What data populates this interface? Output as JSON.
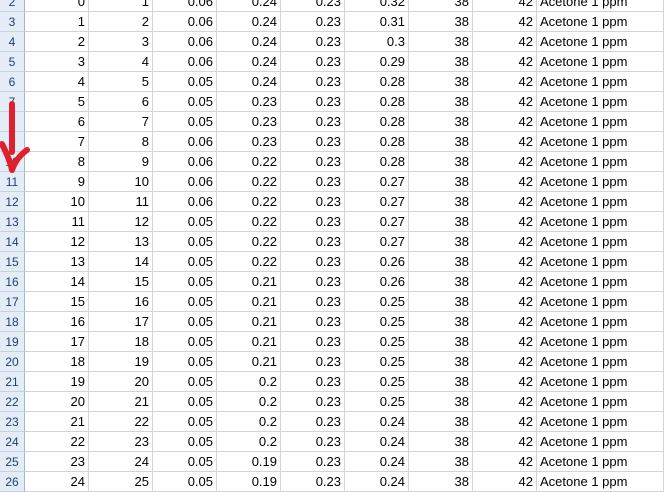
{
  "sheet": {
    "rows": [
      {
        "hdr": "2",
        "c": [
          "0",
          "1",
          "0.06",
          "0.24",
          "0.23",
          "0.32",
          "38",
          "42",
          "Acetone 1 ppm"
        ]
      },
      {
        "hdr": "3",
        "c": [
          "1",
          "2",
          "0.06",
          "0.24",
          "0.23",
          "0.31",
          "38",
          "42",
          "Acetone 1 ppm"
        ]
      },
      {
        "hdr": "4",
        "c": [
          "2",
          "3",
          "0.06",
          "0.24",
          "0.23",
          "0.3",
          "38",
          "42",
          "Acetone 1 ppm"
        ]
      },
      {
        "hdr": "5",
        "c": [
          "3",
          "4",
          "0.06",
          "0.24",
          "0.23",
          "0.29",
          "38",
          "42",
          "Acetone 1 ppm"
        ]
      },
      {
        "hdr": "6",
        "c": [
          "4",
          "5",
          "0.05",
          "0.24",
          "0.23",
          "0.28",
          "38",
          "42",
          "Acetone 1 ppm"
        ]
      },
      {
        "hdr": "7",
        "c": [
          "5",
          "6",
          "0.05",
          "0.23",
          "0.23",
          "0.28",
          "38",
          "42",
          "Acetone 1 ppm"
        ]
      },
      {
        "hdr": "8",
        "c": [
          "6",
          "7",
          "0.05",
          "0.23",
          "0.23",
          "0.28",
          "38",
          "42",
          "Acetone 1 ppm"
        ]
      },
      {
        "hdr": "9",
        "c": [
          "7",
          "8",
          "0.06",
          "0.23",
          "0.23",
          "0.28",
          "38",
          "42",
          "Acetone 1 ppm"
        ]
      },
      {
        "hdr": "10",
        "c": [
          "8",
          "9",
          "0.06",
          "0.22",
          "0.23",
          "0.28",
          "38",
          "42",
          "Acetone 1 ppm"
        ]
      },
      {
        "hdr": "11",
        "c": [
          "9",
          "10",
          "0.06",
          "0.22",
          "0.23",
          "0.27",
          "38",
          "42",
          "Acetone 1 ppm"
        ]
      },
      {
        "hdr": "12",
        "c": [
          "10",
          "11",
          "0.06",
          "0.22",
          "0.23",
          "0.27",
          "38",
          "42",
          "Acetone 1 ppm"
        ]
      },
      {
        "hdr": "13",
        "c": [
          "11",
          "12",
          "0.05",
          "0.22",
          "0.23",
          "0.27",
          "38",
          "42",
          "Acetone 1 ppm"
        ]
      },
      {
        "hdr": "14",
        "c": [
          "12",
          "13",
          "0.05",
          "0.22",
          "0.23",
          "0.27",
          "38",
          "42",
          "Acetone 1 ppm"
        ]
      },
      {
        "hdr": "15",
        "c": [
          "13",
          "14",
          "0.05",
          "0.22",
          "0.23",
          "0.26",
          "38",
          "42",
          "Acetone 1 ppm"
        ]
      },
      {
        "hdr": "16",
        "c": [
          "14",
          "15",
          "0.05",
          "0.21",
          "0.23",
          "0.26",
          "38",
          "42",
          "Acetone 1 ppm"
        ]
      },
      {
        "hdr": "17",
        "c": [
          "15",
          "16",
          "0.05",
          "0.21",
          "0.23",
          "0.25",
          "38",
          "42",
          "Acetone 1 ppm"
        ]
      },
      {
        "hdr": "18",
        "c": [
          "16",
          "17",
          "0.05",
          "0.21",
          "0.23",
          "0.25",
          "38",
          "42",
          "Acetone 1 ppm"
        ]
      },
      {
        "hdr": "19",
        "c": [
          "17",
          "18",
          "0.05",
          "0.21",
          "0.23",
          "0.25",
          "38",
          "42",
          "Acetone 1 ppm"
        ]
      },
      {
        "hdr": "20",
        "c": [
          "18",
          "19",
          "0.05",
          "0.21",
          "0.23",
          "0.25",
          "38",
          "42",
          "Acetone 1 ppm"
        ]
      },
      {
        "hdr": "21",
        "c": [
          "19",
          "20",
          "0.05",
          "0.2",
          "0.23",
          "0.25",
          "38",
          "42",
          "Acetone 1 ppm"
        ]
      },
      {
        "hdr": "22",
        "c": [
          "20",
          "21",
          "0.05",
          "0.2",
          "0.23",
          "0.25",
          "38",
          "42",
          "Acetone 1 ppm"
        ]
      },
      {
        "hdr": "23",
        "c": [
          "21",
          "22",
          "0.05",
          "0.2",
          "0.23",
          "0.24",
          "38",
          "42",
          "Acetone 1 ppm"
        ]
      },
      {
        "hdr": "24",
        "c": [
          "22",
          "23",
          "0.05",
          "0.2",
          "0.23",
          "0.24",
          "38",
          "42",
          "Acetone 1 ppm"
        ]
      },
      {
        "hdr": "25",
        "c": [
          "23",
          "24",
          "0.05",
          "0.19",
          "0.23",
          "0.24",
          "38",
          "42",
          "Acetone 1 ppm"
        ]
      },
      {
        "hdr": "26",
        "c": [
          "24",
          "25",
          "0.05",
          "0.19",
          "0.23",
          "0.24",
          "38",
          "42",
          "Acetone 1 ppm"
        ]
      }
    ]
  },
  "annotation": {
    "arrow_color": "#e0202a"
  }
}
